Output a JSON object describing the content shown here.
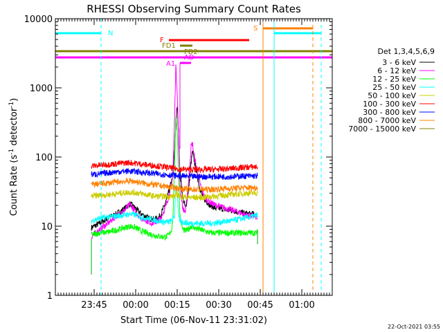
{
  "chart_data": {
    "type": "line",
    "title": "RHESSI Observing Summary Count Rates",
    "xlabel": "Start Time (06-Nov-11 23:31:02)",
    "ylabel_main": "Count Rate (s",
    "ylabel_sup1": "-1",
    "ylabel_mid": " detector",
    "ylabel_sup2": "-1",
    "ylabel_end": ")",
    "y_scale": "log",
    "ylim": [
      1,
      10000
    ],
    "xlim_minutes": [
      0,
      100
    ],
    "x_ticks": [
      {
        "minute": 14,
        "label": "23:45"
      },
      {
        "minute": 29,
        "label": "00:00"
      },
      {
        "minute": 44,
        "label": "00:15"
      },
      {
        "minute": 59,
        "label": "00:30"
      },
      {
        "minute": 74,
        "label": "00:45"
      },
      {
        "minute": 89,
        "label": "01:00"
      }
    ],
    "y_ticks": [
      {
        "value": 1,
        "label": "1"
      },
      {
        "value": 10,
        "label": "10"
      },
      {
        "value": 100,
        "label": "100"
      },
      {
        "value": 1000,
        "label": "1000"
      },
      {
        "value": 10000,
        "label": "10000"
      }
    ],
    "legend_title": "Det 1,3,4,5,6,9",
    "legend_placement": "right",
    "series": [
      {
        "name": "3 - 6 keV",
        "color": "#000000",
        "points": [
          [
            13,
            9.5
          ],
          [
            16,
            11
          ],
          [
            19,
            13
          ],
          [
            22,
            15
          ],
          [
            25,
            18
          ],
          [
            27,
            21
          ],
          [
            29,
            18
          ],
          [
            31,
            15
          ],
          [
            33,
            13.5
          ],
          [
            35,
            12.5
          ],
          [
            37,
            13
          ],
          [
            38,
            14.5
          ],
          [
            39,
            18
          ],
          [
            40,
            23
          ],
          [
            41,
            32
          ],
          [
            42,
            45
          ],
          [
            42.5,
            60
          ],
          [
            43,
            110
          ],
          [
            43.5,
            300
          ],
          [
            44,
            540
          ],
          [
            44.5,
            230
          ],
          [
            45,
            60
          ],
          [
            46,
            26
          ],
          [
            47,
            18
          ],
          [
            48,
            30
          ],
          [
            49,
            80
          ],
          [
            49.5,
            120
          ],
          [
            50,
            95
          ],
          [
            51,
            60
          ],
          [
            52,
            38
          ],
          [
            53,
            28
          ],
          [
            54,
            24
          ],
          [
            56,
            20
          ],
          [
            58,
            18
          ],
          [
            60,
            18
          ],
          [
            62,
            17
          ],
          [
            64,
            17
          ],
          [
            66,
            16
          ],
          [
            68,
            15.5
          ],
          [
            70,
            15
          ],
          [
            72,
            15
          ],
          [
            73,
            14
          ]
        ]
      },
      {
        "name": "6 - 12 keV",
        "color": "#ff00ff",
        "points": [
          [
            13,
            7
          ],
          [
            16,
            9
          ],
          [
            19,
            11
          ],
          [
            22,
            14
          ],
          [
            25,
            17
          ],
          [
            27,
            21
          ],
          [
            29,
            16
          ],
          [
            31,
            13
          ],
          [
            33,
            12
          ],
          [
            35,
            11
          ],
          [
            37,
            12
          ],
          [
            38,
            13
          ],
          [
            39,
            16
          ],
          [
            40,
            20
          ],
          [
            41,
            28
          ],
          [
            42,
            40
          ],
          [
            42.5,
            70
          ],
          [
            43,
            300
          ],
          [
            43.5,
            2100
          ],
          [
            44,
            900
          ],
          [
            44.5,
            200
          ],
          [
            45,
            40
          ],
          [
            46,
            18
          ],
          [
            47,
            16
          ],
          [
            48,
            40
          ],
          [
            49,
            140
          ],
          [
            49.5,
            160
          ],
          [
            50,
            110
          ],
          [
            51,
            70
          ],
          [
            52,
            45
          ],
          [
            53,
            32
          ],
          [
            54,
            26
          ],
          [
            56,
            22
          ],
          [
            58,
            20
          ],
          [
            60,
            19
          ],
          [
            62,
            18
          ],
          [
            64,
            17
          ],
          [
            66,
            16
          ],
          [
            68,
            15
          ],
          [
            70,
            14
          ],
          [
            72,
            14
          ],
          [
            73,
            13
          ]
        ]
      },
      {
        "name": "12 - 25 keV",
        "color": "#00ff00",
        "points": [
          [
            13,
            7.5
          ],
          [
            16,
            8
          ],
          [
            19,
            8.2
          ],
          [
            22,
            8.8
          ],
          [
            25,
            9.5
          ],
          [
            27,
            10
          ],
          [
            29,
            9.5
          ],
          [
            31,
            8.5
          ],
          [
            33,
            8
          ],
          [
            35,
            7.5
          ],
          [
            37,
            7.2
          ],
          [
            39,
            7
          ],
          [
            40,
            7
          ],
          [
            41,
            7.5
          ],
          [
            42,
            9
          ],
          [
            42.5,
            14
          ],
          [
            43,
            70
          ],
          [
            43.5,
            400
          ],
          [
            44,
            240
          ],
          [
            44.5,
            60
          ],
          [
            45,
            14
          ],
          [
            46,
            9
          ],
          [
            47,
            8.5
          ],
          [
            48,
            9
          ],
          [
            49,
            10
          ],
          [
            50,
            9.5
          ],
          [
            52,
            9
          ],
          [
            54,
            8.5
          ],
          [
            56,
            8
          ],
          [
            58,
            8
          ],
          [
            60,
            8
          ],
          [
            62,
            8
          ],
          [
            64,
            8
          ],
          [
            66,
            8
          ],
          [
            68,
            8
          ],
          [
            70,
            8
          ],
          [
            72,
            8
          ],
          [
            73,
            8
          ]
        ]
      },
      {
        "name": "25 - 50 keV",
        "color": "#00ffff",
        "points": [
          [
            13,
            12
          ],
          [
            16,
            13
          ],
          [
            19,
            13.5
          ],
          [
            22,
            14
          ],
          [
            25,
            14.5
          ],
          [
            27,
            15
          ],
          [
            29,
            14.5
          ],
          [
            31,
            13.5
          ],
          [
            33,
            13
          ],
          [
            35,
            12.5
          ],
          [
            37,
            12
          ],
          [
            39,
            11.5
          ],
          [
            41,
            11.5
          ],
          [
            42,
            12
          ],
          [
            43,
            14
          ],
          [
            43.5,
            40
          ],
          [
            44,
            30
          ],
          [
            44.5,
            14
          ],
          [
            45,
            12
          ],
          [
            46,
            11.5
          ],
          [
            48,
            11
          ],
          [
            50,
            11
          ],
          [
            52,
            11
          ],
          [
            54,
            11
          ],
          [
            56,
            11
          ],
          [
            58,
            11.2
          ],
          [
            60,
            11.5
          ],
          [
            62,
            11.8
          ],
          [
            64,
            12
          ],
          [
            66,
            12.5
          ],
          [
            68,
            13
          ],
          [
            70,
            13.5
          ],
          [
            72,
            14
          ],
          [
            73,
            14.5
          ]
        ]
      },
      {
        "name": "50 - 100 keV",
        "color": "#cccc00",
        "points": [
          [
            13,
            27
          ],
          [
            16,
            28
          ],
          [
            19,
            28.5
          ],
          [
            22,
            29.5
          ],
          [
            25,
            30.5
          ],
          [
            27,
            31
          ],
          [
            29,
            30.5
          ],
          [
            31,
            29.5
          ],
          [
            33,
            28.5
          ],
          [
            35,
            27.5
          ],
          [
            37,
            27
          ],
          [
            39,
            27
          ],
          [
            41,
            27
          ],
          [
            43,
            27
          ],
          [
            44,
            29
          ],
          [
            45,
            27
          ],
          [
            47,
            26.5
          ],
          [
            49,
            26
          ],
          [
            51,
            26
          ],
          [
            53,
            26
          ],
          [
            55,
            26.5
          ],
          [
            57,
            27
          ],
          [
            59,
            27.5
          ],
          [
            61,
            28
          ],
          [
            63,
            28.5
          ],
          [
            65,
            29
          ],
          [
            67,
            29.5
          ],
          [
            69,
            30
          ],
          [
            71,
            30
          ],
          [
            73,
            30
          ]
        ]
      },
      {
        "name": "100 - 300 keV",
        "color": "#ff0000",
        "points": [
          [
            13,
            74
          ],
          [
            16,
            76
          ],
          [
            19,
            78
          ],
          [
            22,
            80
          ],
          [
            25,
            82
          ],
          [
            27,
            83
          ],
          [
            29,
            81
          ],
          [
            31,
            79
          ],
          [
            33,
            77
          ],
          [
            35,
            76
          ],
          [
            37,
            74
          ],
          [
            39,
            72
          ],
          [
            41,
            70
          ],
          [
            43,
            68
          ],
          [
            45,
            67
          ],
          [
            47,
            66
          ],
          [
            49,
            66
          ],
          [
            51,
            66
          ],
          [
            53,
            66
          ],
          [
            55,
            66
          ],
          [
            57,
            66
          ],
          [
            59,
            66.5
          ],
          [
            61,
            67
          ],
          [
            63,
            68
          ],
          [
            65,
            69
          ],
          [
            67,
            70
          ],
          [
            69,
            71
          ],
          [
            71,
            72
          ],
          [
            73,
            72
          ]
        ]
      },
      {
        "name": "300 - 800 keV",
        "color": "#0000ff",
        "points": [
          [
            13,
            56
          ],
          [
            16,
            57
          ],
          [
            19,
            59
          ],
          [
            22,
            61
          ],
          [
            25,
            62
          ],
          [
            27,
            62.5
          ],
          [
            29,
            61.5
          ],
          [
            31,
            60
          ],
          [
            33,
            59
          ],
          [
            35,
            58
          ],
          [
            37,
            57
          ],
          [
            39,
            56
          ],
          [
            41,
            55
          ],
          [
            43,
            54
          ],
          [
            45,
            53
          ],
          [
            47,
            52.5
          ],
          [
            49,
            52
          ],
          [
            51,
            52
          ],
          [
            53,
            52
          ],
          [
            55,
            52
          ],
          [
            57,
            52
          ],
          [
            59,
            52
          ],
          [
            61,
            52
          ],
          [
            63,
            52
          ],
          [
            65,
            52.5
          ],
          [
            67,
            53
          ],
          [
            69,
            53
          ],
          [
            71,
            53
          ],
          [
            73,
            53
          ]
        ]
      },
      {
        "name": "800 - 7000 keV",
        "color": "#ff8000",
        "points": [
          [
            13,
            40
          ],
          [
            16,
            41
          ],
          [
            19,
            42
          ],
          [
            22,
            43.5
          ],
          [
            25,
            44.5
          ],
          [
            27,
            45
          ],
          [
            29,
            44
          ],
          [
            31,
            42.5
          ],
          [
            33,
            41
          ],
          [
            35,
            40
          ],
          [
            37,
            39
          ],
          [
            39,
            38
          ],
          [
            41,
            37
          ],
          [
            43,
            36
          ],
          [
            45,
            35
          ],
          [
            47,
            34.5
          ],
          [
            49,
            34
          ],
          [
            51,
            34
          ],
          [
            53,
            34
          ],
          [
            55,
            34
          ],
          [
            57,
            34
          ],
          [
            59,
            34.5
          ],
          [
            61,
            35
          ],
          [
            63,
            35
          ],
          [
            65,
            35.5
          ],
          [
            67,
            36
          ],
          [
            69,
            36
          ],
          [
            71,
            36
          ],
          [
            73,
            36
          ]
        ]
      },
      {
        "name": "7000 - 15000 keV",
        "color": "#808000",
        "points": []
      }
    ],
    "flag_labels": [
      {
        "text": "N",
        "color": "#00ffff"
      },
      {
        "text": "S",
        "color": "#ff8000"
      },
      {
        "text": "F",
        "color": "#ff0000"
      },
      {
        "text": "FD1",
        "color": "#808000"
      },
      {
        "text": "FD2",
        "color": "#808000"
      },
      {
        "text": "AD",
        "color": "#ff00ff"
      },
      {
        "text": "A1",
        "color": "#ff00ff"
      }
    ],
    "timestamp": "22-Oct-2021 03:55"
  }
}
